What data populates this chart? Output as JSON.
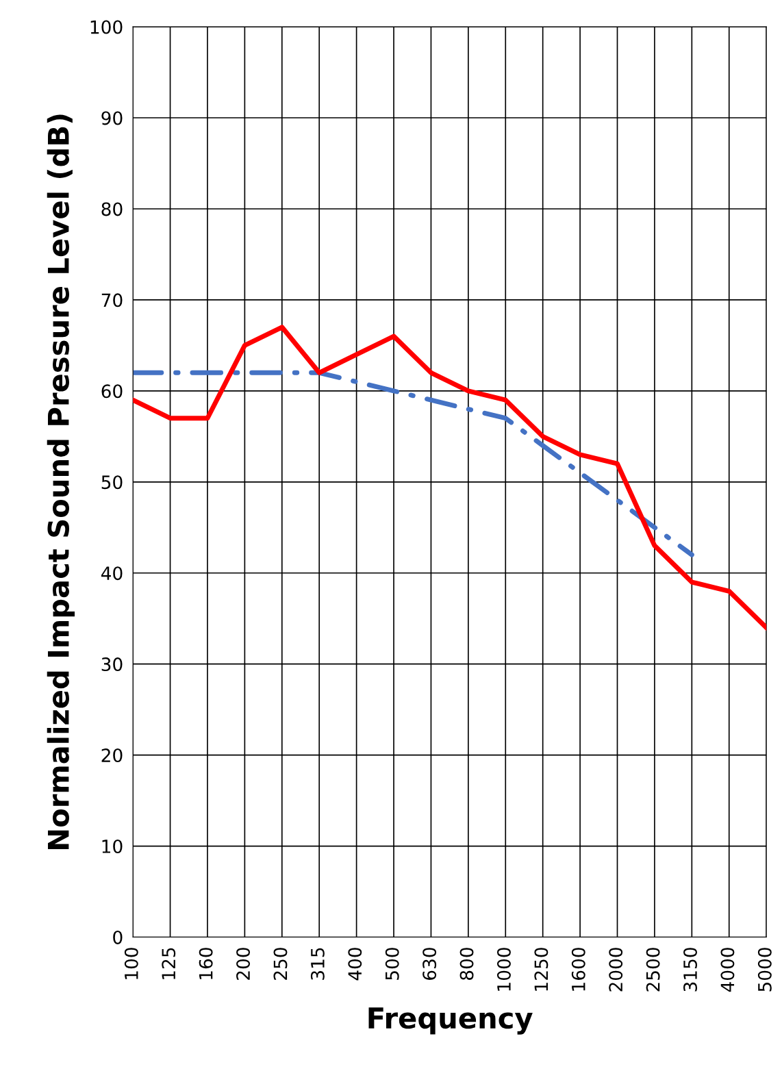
{
  "chart_data": {
    "type": "line",
    "xlabel": "Frequency",
    "ylabel": "Normalized Impact Sound Pressure Level (dB)",
    "categories": [
      "100",
      "125",
      "160",
      "200",
      "250",
      "315",
      "400",
      "500",
      "630",
      "800",
      "1000",
      "1250",
      "1600",
      "2000",
      "2500",
      "3150",
      "4000",
      "5000"
    ],
    "series": [
      {
        "color": "#ff0000",
        "line_style": "solid",
        "values": [
          59,
          57,
          57,
          65,
          67,
          62,
          64,
          66,
          62,
          60,
          59,
          55,
          53,
          52,
          43,
          39,
          38,
          34
        ]
      },
      {
        "color": "#4472c4",
        "line_style": "dashdot",
        "values": [
          62,
          62,
          62,
          62,
          62,
          62,
          61,
          60,
          59,
          58,
          57,
          54,
          51,
          48,
          45,
          42,
          null,
          null
        ]
      }
    ],
    "ylim": [
      0,
      100
    ],
    "yticks": [
      0,
      10,
      20,
      30,
      40,
      50,
      60,
      70,
      80,
      90,
      100
    ],
    "grid": true,
    "marker": "none",
    "legend": false
  }
}
